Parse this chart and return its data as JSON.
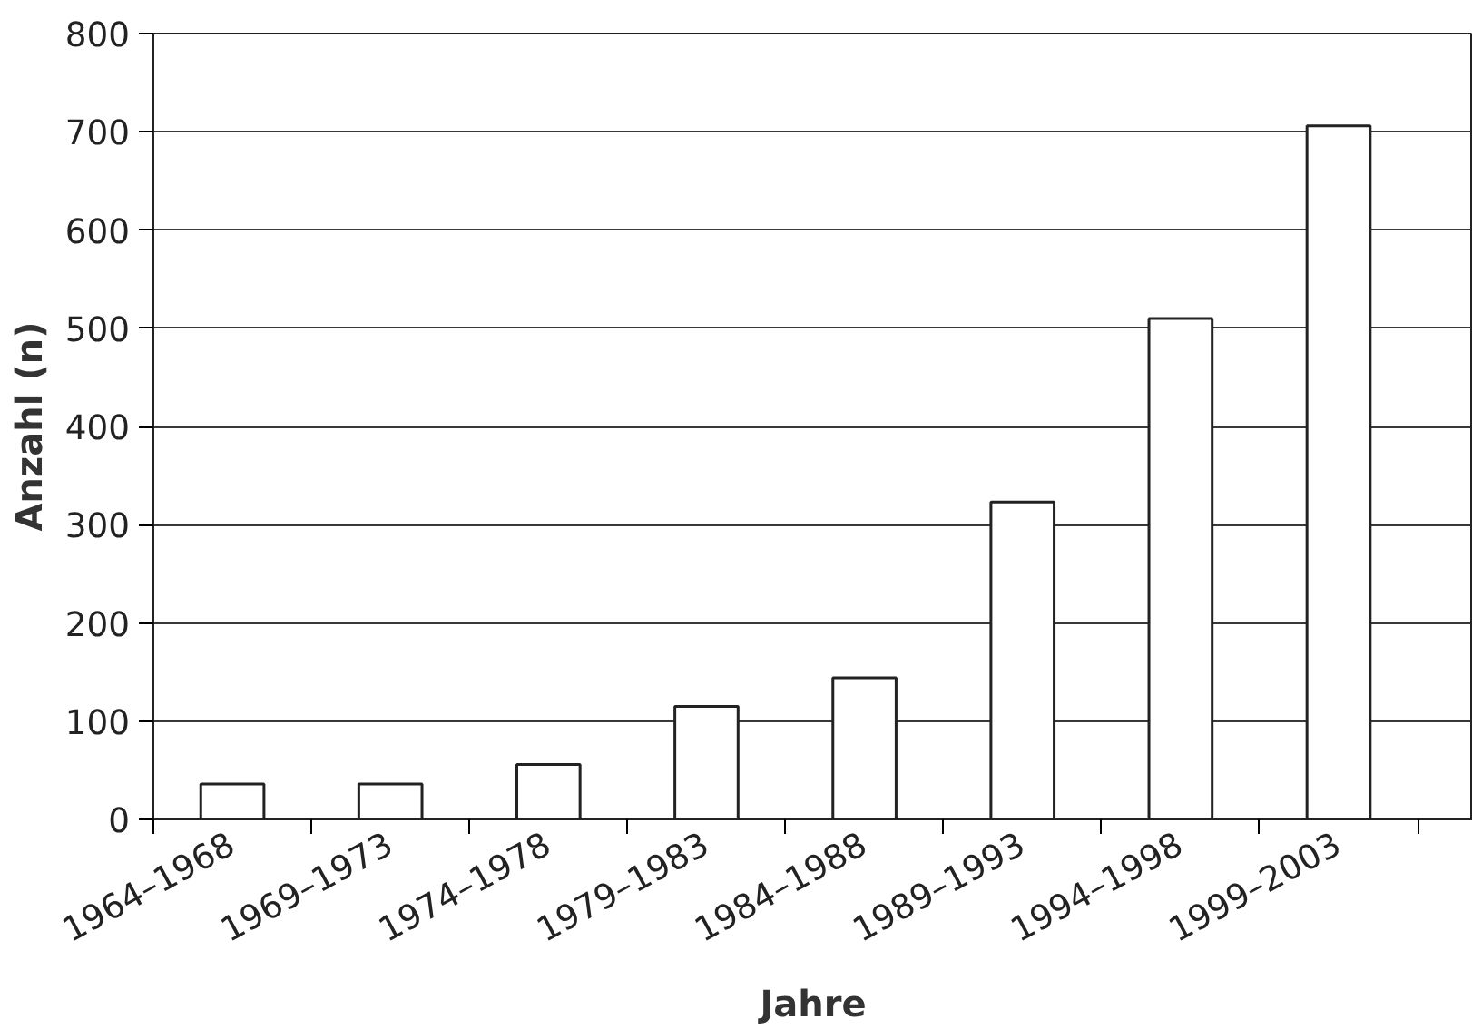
{
  "chart_data": {
    "type": "bar",
    "xlabel": "Jahre",
    "ylabel": "Anzahl (n)",
    "categories": [
      "1964–1968",
      "1969–1973",
      "1974–1978",
      "1979–1983",
      "1984–1988",
      "1989–1993",
      "1994–1998",
      "1999–2003"
    ],
    "values": [
      36,
      36,
      56,
      115,
      144,
      323,
      510,
      706
    ],
    "color": "#ffffff",
    "ylim": [
      0,
      800
    ],
    "yticks": [
      0,
      100,
      200,
      300,
      400,
      500,
      600,
      700,
      800
    ],
    "grid": "y"
  }
}
